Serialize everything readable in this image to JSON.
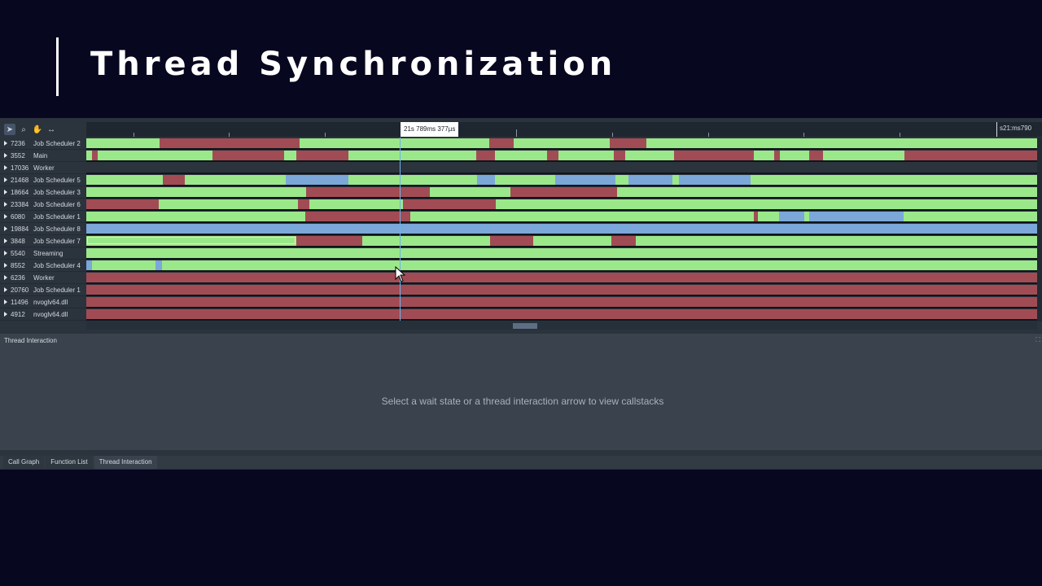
{
  "slide": {
    "title": "Thread Synchronization"
  },
  "toolbar": {
    "tools": [
      {
        "name": "select-tool",
        "glyph": "➤"
      },
      {
        "name": "zoom-tool",
        "glyph": "⌕"
      },
      {
        "name": "pan-tool",
        "glyph": "✋"
      },
      {
        "name": "measure-tool",
        "glyph": "↔"
      }
    ]
  },
  "ruler": {
    "cursor_time": "21s 789ms 377µs",
    "end_label": "s21:ms790"
  },
  "threads": [
    {
      "id": "7236",
      "name": "Job Scheduler 2"
    },
    {
      "id": "3552",
      "name": "Main"
    },
    {
      "id": "17036",
      "name": "Worker"
    },
    {
      "id": "21468",
      "name": "Job Scheduler 5"
    },
    {
      "id": "18664",
      "name": "Job Scheduler 3"
    },
    {
      "id": "23384",
      "name": "Job Scheduler 6"
    },
    {
      "id": "6080",
      "name": "Job Scheduler 1"
    },
    {
      "id": "19884",
      "name": "Job Scheduler 8"
    },
    {
      "id": "3848",
      "name": "Job Scheduler 7"
    },
    {
      "id": "5540",
      "name": "Streaming"
    },
    {
      "id": "8552",
      "name": "Job Scheduler 4"
    },
    {
      "id": "6236",
      "name": "Worker"
    },
    {
      "id": "20760",
      "name": "Job Scheduler 1"
    },
    {
      "id": "11496",
      "name": "nvoglv64.dll"
    },
    {
      "id": "4912",
      "name": "nvoglv64.dll"
    }
  ],
  "lanes": [
    [
      [
        "g",
        0,
        90
      ],
      [
        "r",
        90,
        262
      ],
      [
        "g",
        262,
        495
      ],
      [
        "r",
        495,
        525
      ],
      [
        "g",
        525,
        643
      ],
      [
        "r",
        643,
        688
      ],
      [
        "g",
        688,
        1168
      ]
    ],
    [
      [
        "g",
        0,
        7
      ],
      [
        "r",
        7,
        14
      ],
      [
        "g",
        14,
        155
      ],
      [
        "r",
        155,
        243
      ],
      [
        "g",
        243,
        258
      ],
      [
        "r",
        258,
        322
      ],
      [
        "g",
        322,
        479
      ],
      [
        "r",
        479,
        502
      ],
      [
        "g",
        502,
        566
      ],
      [
        "r",
        566,
        580
      ],
      [
        "g",
        580,
        648
      ],
      [
        "r",
        648,
        662
      ],
      [
        "g",
        662,
        722
      ],
      [
        "r",
        722,
        820
      ],
      [
        "g",
        820,
        845
      ],
      [
        "r",
        845,
        852
      ],
      [
        "g",
        852,
        888
      ],
      [
        "r",
        888,
        905
      ],
      [
        "g",
        905,
        1005
      ],
      [
        "r",
        1005,
        1168
      ]
    ],
    [
      [
        "dark",
        0,
        1168
      ]
    ],
    [
      [
        "g",
        0,
        94
      ],
      [
        "r",
        94,
        121
      ],
      [
        "g",
        121,
        245
      ],
      [
        "b",
        245,
        322
      ],
      [
        "g",
        322,
        480
      ],
      [
        "b",
        480,
        502
      ],
      [
        "g",
        502,
        576
      ],
      [
        "b",
        576,
        650
      ],
      [
        "g",
        650,
        666
      ],
      [
        "b",
        666,
        720
      ],
      [
        "g",
        720,
        728
      ],
      [
        "b",
        728,
        816
      ],
      [
        "g",
        816,
        1168
      ]
    ],
    [
      [
        "g",
        0,
        270
      ],
      [
        "r",
        270,
        422
      ],
      [
        "g",
        422,
        521
      ],
      [
        "r",
        521,
        652
      ],
      [
        "g",
        652,
        1168
      ]
    ],
    [
      [
        "r",
        0,
        89
      ],
      [
        "g",
        89,
        260
      ],
      [
        "r",
        260,
        274
      ],
      [
        "g",
        274,
        389
      ],
      [
        "r",
        389,
        503
      ],
      [
        "g",
        503,
        1168
      ]
    ],
    [
      [
        "g",
        0,
        269
      ],
      [
        "r",
        269,
        398
      ],
      [
        "g",
        398,
        820
      ],
      [
        "r",
        820,
        825
      ],
      [
        "g",
        825,
        851
      ],
      [
        "b",
        851,
        882
      ],
      [
        "g",
        882,
        888
      ],
      [
        "b",
        888,
        1004
      ],
      [
        "g",
        1004,
        1168
      ]
    ],
    [
      [
        "b",
        0,
        1168
      ]
    ],
    [
      [
        "g",
        0,
        258
      ],
      [
        "r",
        258,
        339
      ],
      [
        "g",
        339,
        496
      ],
      [
        "r",
        496,
        549
      ],
      [
        "g",
        549,
        645
      ],
      [
        "r",
        645,
        675
      ],
      [
        "g",
        675,
        1168
      ]
    ],
    [
      [
        "g",
        0,
        1168
      ]
    ],
    [
      [
        "b",
        0,
        7
      ],
      [
        "g",
        7,
        85
      ],
      [
        "b",
        85,
        93
      ],
      [
        "g",
        93,
        1168
      ]
    ],
    [
      [
        "r",
        0,
        1168
      ]
    ],
    [
      [
        "r",
        0,
        1168
      ]
    ],
    [
      [
        "r",
        0,
        1168
      ]
    ],
    [
      [
        "r",
        0,
        1168
      ]
    ]
  ],
  "panel": {
    "title": "Thread Interaction",
    "message": "Select a wait state or a thread interaction arrow to view callstacks"
  },
  "tabs": [
    {
      "label": "Call Graph",
      "active": false
    },
    {
      "label": "Function List",
      "active": false
    },
    {
      "label": "Thread Interaction",
      "active": true
    }
  ],
  "colors": {
    "running": "#9be88a",
    "waiting": "#a14c55",
    "sleeping": "#7ba7d9",
    "cursor": "#6fb3e6"
  }
}
